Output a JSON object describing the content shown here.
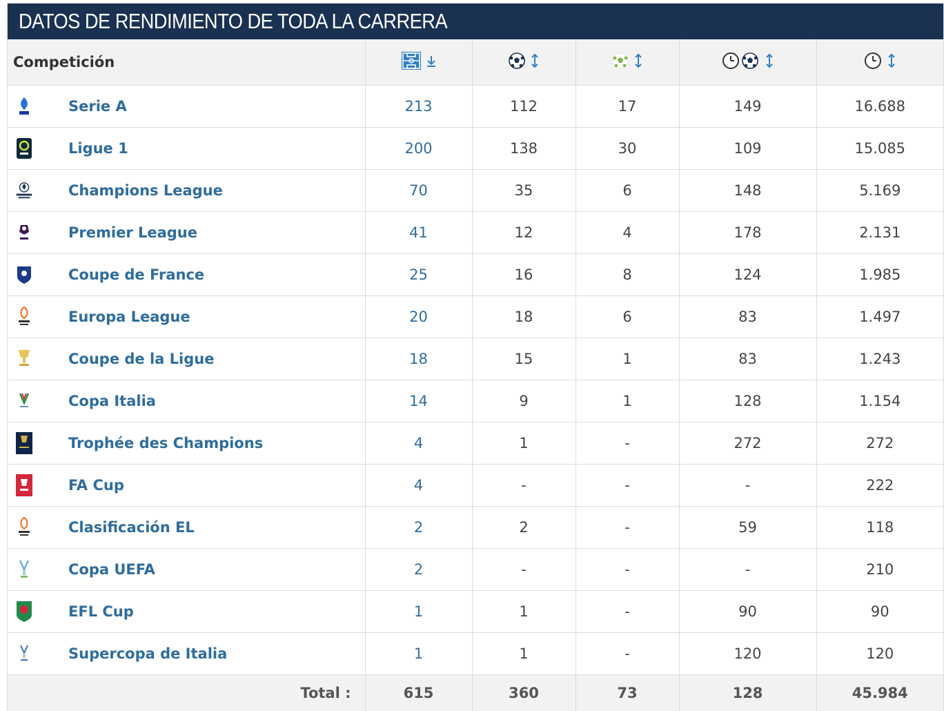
{
  "header": {
    "title": "DATOS DE RENDIMIENTO DE TODA LA CARRERA"
  },
  "table": {
    "competition_header": "Competición",
    "columns": [
      {
        "icon": "pitch-icon",
        "sort": "sort-desc-icon"
      },
      {
        "icon": "ball-icon",
        "sort": "sort-both-icon"
      },
      {
        "icon": "assist-ball-icon",
        "sort": "sort-both-icon"
      },
      {
        "icon": "clock-ball-icon",
        "sort": "sort-both-icon"
      },
      {
        "icon": "clock-icon",
        "sort": "sort-both-icon"
      }
    ],
    "rows": [
      {
        "competition": "Serie A",
        "logo": "serie-a-logo",
        "apps": "213",
        "goals": "112",
        "assists": "17",
        "min_per_goal": "149",
        "minutes": "16.688"
      },
      {
        "competition": "Ligue 1",
        "logo": "ligue-1-logo",
        "apps": "200",
        "goals": "138",
        "assists": "30",
        "min_per_goal": "109",
        "minutes": "15.085"
      },
      {
        "competition": "Champions League",
        "logo": "champions-league-logo",
        "apps": "70",
        "goals": "35",
        "assists": "6",
        "min_per_goal": "148",
        "minutes": "5.169"
      },
      {
        "competition": "Premier League",
        "logo": "premier-league-logo",
        "apps": "41",
        "goals": "12",
        "assists": "4",
        "min_per_goal": "178",
        "minutes": "2.131"
      },
      {
        "competition": "Coupe de France",
        "logo": "coupe-de-france-logo",
        "apps": "25",
        "goals": "16",
        "assists": "8",
        "min_per_goal": "124",
        "minutes": "1.985"
      },
      {
        "competition": "Europa League",
        "logo": "europa-league-logo",
        "apps": "20",
        "goals": "18",
        "assists": "6",
        "min_per_goal": "83",
        "minutes": "1.497"
      },
      {
        "competition": "Coupe de la Ligue",
        "logo": "coupe-de-la-ligue-logo",
        "apps": "18",
        "goals": "15",
        "assists": "1",
        "min_per_goal": "83",
        "minutes": "1.243"
      },
      {
        "competition": "Copa Italia",
        "logo": "copa-italia-logo",
        "apps": "14",
        "goals": "9",
        "assists": "1",
        "min_per_goal": "128",
        "minutes": "1.154"
      },
      {
        "competition": "Trophée des Champions",
        "logo": "trophee-des-champions-logo",
        "apps": "4",
        "goals": "1",
        "assists": "-",
        "min_per_goal": "272",
        "minutes": "272"
      },
      {
        "competition": "FA Cup",
        "logo": "fa-cup-logo",
        "apps": "4",
        "goals": "-",
        "assists": "-",
        "min_per_goal": "-",
        "minutes": "222"
      },
      {
        "competition": "Clasificación EL",
        "logo": "europa-league-logo",
        "apps": "2",
        "goals": "2",
        "assists": "-",
        "min_per_goal": "59",
        "minutes": "118"
      },
      {
        "competition": "Copa UEFA",
        "logo": "uefa-cup-logo",
        "apps": "2",
        "goals": "-",
        "assists": "-",
        "min_per_goal": "-",
        "minutes": "210"
      },
      {
        "competition": "EFL Cup",
        "logo": "efl-cup-logo",
        "apps": "1",
        "goals": "1",
        "assists": "-",
        "min_per_goal": "90",
        "minutes": "90"
      },
      {
        "competition": "Supercopa de Italia",
        "logo": "supercopa-italia-logo",
        "apps": "1",
        "goals": "1",
        "assists": "-",
        "min_per_goal": "120",
        "minutes": "120"
      }
    ],
    "totals": {
      "label": "Total :",
      "apps": "615",
      "goals": "360",
      "assists": "73",
      "min_per_goal": "128",
      "minutes": "45.984"
    }
  },
  "colors": {
    "header_bg": "#1a3151",
    "link": "#2f6d9c",
    "assist_green": "#7ab648"
  }
}
